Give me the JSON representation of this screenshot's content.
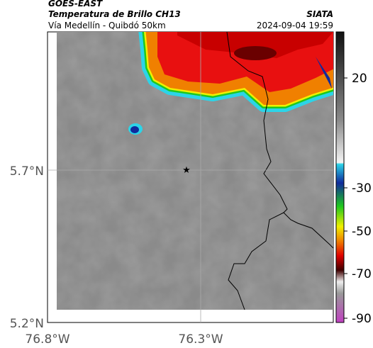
{
  "header": {
    "title": "GOES-EAST",
    "subtitle": "Temperatura de Brillo CH13",
    "location": "Vía Medellín - Quibdó 50km",
    "source": "SIATA",
    "timestamp": "2024-09-04 19:59"
  },
  "map": {
    "lat_labels": [
      "5.7°N",
      "5.2°N"
    ],
    "lon_labels": [
      "76.8°W",
      "76.3°W"
    ]
  },
  "colorbar": {
    "ticks": [
      "20",
      "-30",
      "-50",
      "-70",
      "-90"
    ]
  }
}
